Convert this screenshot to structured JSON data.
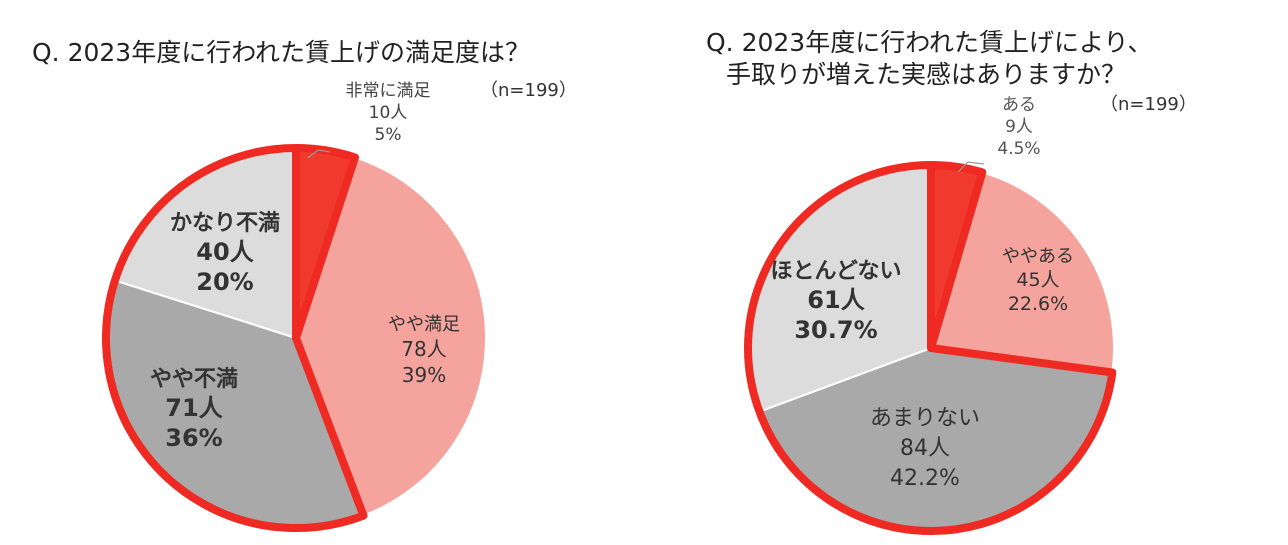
{
  "chart_data": [
    {
      "type": "pie",
      "title": "Q. 2023年度に行われた賃上げの満足度は？",
      "sample_note": "（n=199）",
      "slices": [
        {
          "label": "非常に満足",
          "count": "10人",
          "percent": "5%",
          "value": 10,
          "color": "#ef3a2d"
        },
        {
          "label": "やや満足",
          "count": "78人",
          "percent": "39%",
          "value": 78,
          "color": "#f5a39d"
        },
        {
          "label": "やや不満",
          "count": "71人",
          "percent": "36%",
          "value": 71,
          "color": "#a9a9a9"
        },
        {
          "label": "かなり不満",
          "count": "40人",
          "percent": "20%",
          "value": 40,
          "color": "#dcdcdc"
        }
      ],
      "highlight_color": "#ee2a22"
    },
    {
      "type": "pie",
      "title": "Q. 2023年度に行われた賃上げにより、手取りが増えた実感はありますか？",
      "title_lines": [
        "Q. 2023年度に行われた賃上げにより、",
        "手取りが増えた実感はありますか？"
      ],
      "sample_note": "（n=199）",
      "slices": [
        {
          "label": "ある",
          "count": "9人",
          "percent": "4.5%",
          "value": 9,
          "color": "#ef3a2d"
        },
        {
          "label": "ややある",
          "count": "45人",
          "percent": "22.6%",
          "value": 45,
          "color": "#f5a39d"
        },
        {
          "label": "あまりない",
          "count": "84人",
          "percent": "42.2%",
          "value": 84,
          "color": "#a9a9a9"
        },
        {
          "label": "ほとんどない",
          "count": "61人",
          "percent": "30.7%",
          "value": 61,
          "color": "#dcdcdc"
        }
      ],
      "highlight_color": "#ee2a22"
    }
  ]
}
